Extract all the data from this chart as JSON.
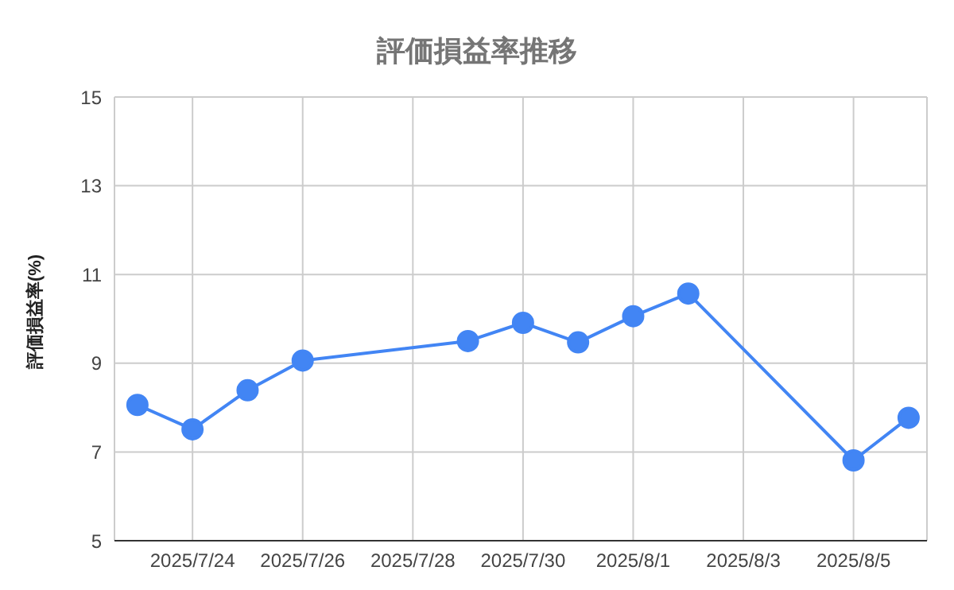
{
  "chart_data": {
    "type": "line",
    "title": "評価損益率推移",
    "ylabel": "評価損益率(%)",
    "x": [
      "2025-07-23",
      "2025-07-24",
      "2025-07-25",
      "2025-07-26",
      "2025-07-29",
      "2025-07-30",
      "2025-07-31",
      "2025-08-01",
      "2025-08-02",
      "2025-08-05",
      "2025-08-06"
    ],
    "series": [
      {
        "color": "#4285f4",
        "values": [
          8.06,
          7.51,
          8.39,
          9.06,
          9.5,
          9.91,
          9.47,
          10.06,
          10.57,
          6.81,
          7.77
        ]
      }
    ],
    "xlim": [
      "2025-07-22T14:00",
      "2025-08-06T08:00"
    ],
    "xticks": [
      {
        "value": "2025-07-24",
        "label": "2025/7/24"
      },
      {
        "value": "2025-07-26",
        "label": "2025/7/26"
      },
      {
        "value": "2025-07-28",
        "label": "2025/7/28"
      },
      {
        "value": "2025-07-30",
        "label": "2025/7/30"
      },
      {
        "value": "2025-08-01",
        "label": "2025/8/1"
      },
      {
        "value": "2025-08-03",
        "label": "2025/8/3"
      },
      {
        "value": "2025-08-05",
        "label": "2025/8/5"
      }
    ],
    "ylim": [
      5,
      15
    ],
    "yticks": [
      5,
      7,
      9,
      11,
      13,
      15
    ],
    "grid": true,
    "marker": "circle",
    "line_style": "solid"
  }
}
